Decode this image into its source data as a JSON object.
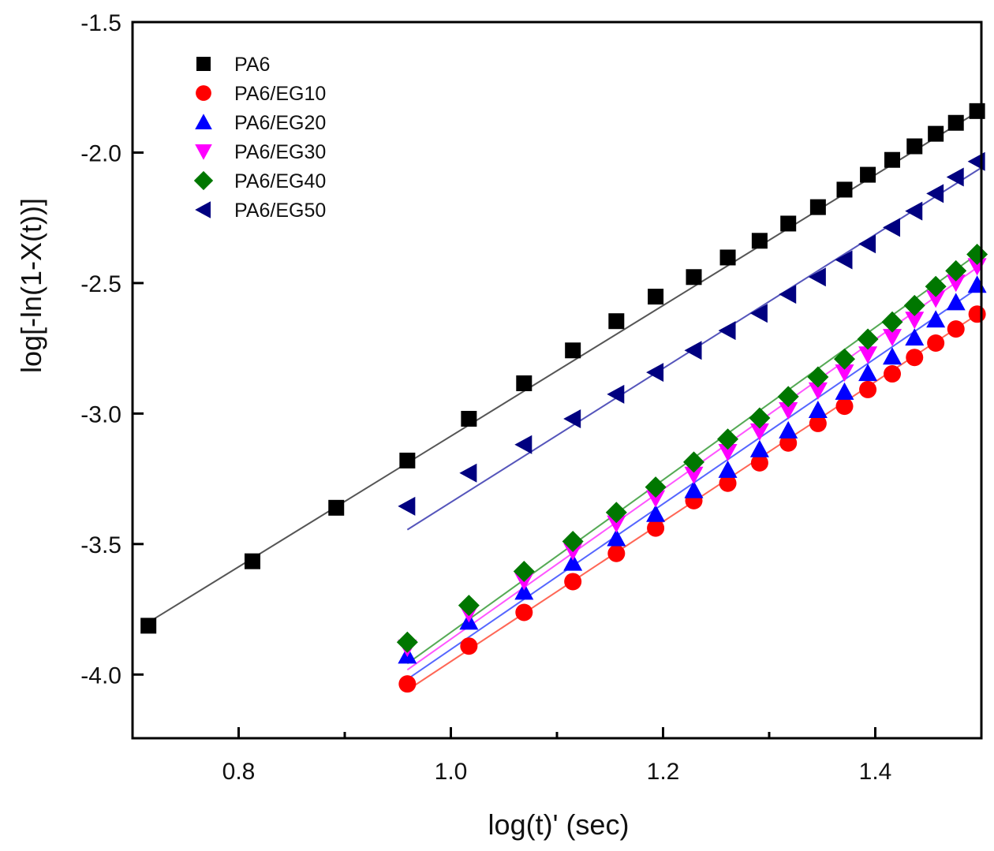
{
  "chart_data": {
    "type": "scatter",
    "title": "",
    "xlabel": "log(t)' (sec)",
    "ylabel": "log[-ln(1-X(t))]",
    "xlim": [
      0.7,
      1.5
    ],
    "ylim": [
      -4.244,
      -1.5
    ],
    "grid": false,
    "legend_position": "top-left",
    "xticks": [
      {
        "value": 0.8,
        "label": "0.8"
      },
      {
        "value": 1.0,
        "label": "1.0"
      },
      {
        "value": 1.2,
        "label": "1.2"
      },
      {
        "value": 1.4,
        "label": "1.4"
      }
    ],
    "xminor": [
      0.9,
      1.1,
      1.3
    ],
    "yticks": [
      {
        "value": -1.5,
        "label": "-1.5"
      },
      {
        "value": -2.0,
        "label": "-2.0"
      },
      {
        "value": -2.5,
        "label": "-2.5"
      },
      {
        "value": -3.0,
        "label": "-3.0"
      },
      {
        "value": -3.5,
        "label": "-3.5"
      },
      {
        "value": -4.0,
        "label": "-4.0"
      }
    ],
    "series": [
      {
        "name": "PA6",
        "marker": "square",
        "color": "#000000",
        "line_color": "#555555",
        "x": [
          0.715,
          0.813,
          0.892,
          0.959,
          1.017,
          1.069,
          1.115,
          1.156,
          1.193,
          1.229,
          1.261,
          1.291,
          1.318,
          1.346,
          1.371,
          1.393,
          1.416,
          1.437,
          1.457,
          1.476,
          1.496
        ],
        "y": [
          -3.813,
          -3.566,
          -3.361,
          -3.18,
          -3.02,
          -2.884,
          -2.758,
          -2.646,
          -2.552,
          -2.477,
          -2.402,
          -2.338,
          -2.272,
          -2.209,
          -2.142,
          -2.085,
          -2.028,
          -1.976,
          -1.928,
          -1.886,
          -1.841
        ],
        "fit": {
          "x": [
            0.715,
            1.5
          ],
          "y": [
            -3.8,
            -1.835
          ]
        }
      },
      {
        "name": "PA6/EG10",
        "marker": "circle",
        "color": "#ff0000",
        "line_color": "#ff6655",
        "x": [
          0.959,
          1.017,
          1.069,
          1.115,
          1.156,
          1.193,
          1.229,
          1.261,
          1.291,
          1.318,
          1.346,
          1.371,
          1.393,
          1.416,
          1.437,
          1.457,
          1.476,
          1.496
        ],
        "y": [
          -4.036,
          -3.891,
          -3.762,
          -3.644,
          -3.536,
          -3.439,
          -3.334,
          -3.267,
          -3.189,
          -3.113,
          -3.038,
          -2.972,
          -2.908,
          -2.848,
          -2.785,
          -2.73,
          -2.676,
          -2.619
        ],
        "fit": {
          "x": [
            0.959,
            1.5
          ],
          "y": [
            -4.06,
            -2.61
          ]
        }
      },
      {
        "name": "PA6/EG20",
        "marker": "triangle-up",
        "color": "#0000ff",
        "line_color": "#5566ff",
        "x": [
          0.959,
          1.017,
          1.069,
          1.115,
          1.156,
          1.193,
          1.229,
          1.261,
          1.291,
          1.318,
          1.346,
          1.371,
          1.393,
          1.416,
          1.437,
          1.457,
          1.476,
          1.496
        ],
        "y": [
          -3.928,
          -3.798,
          -3.683,
          -3.572,
          -3.478,
          -3.385,
          -3.294,
          -3.216,
          -3.137,
          -3.065,
          -2.987,
          -2.917,
          -2.845,
          -2.782,
          -2.709,
          -2.64,
          -2.574,
          -2.507
        ],
        "fit": {
          "x": [
            0.959,
            1.5
          ],
          "y": [
            -4.018,
            -2.51
          ]
        }
      },
      {
        "name": "PA6/EG30",
        "marker": "triangle-down",
        "color": "#ff00ff",
        "line_color": "#ff55ff",
        "x": [
          0.959,
          1.017,
          1.069,
          1.115,
          1.156,
          1.193,
          1.229,
          1.261,
          1.291,
          1.318,
          1.346,
          1.371,
          1.393,
          1.416,
          1.437,
          1.457,
          1.476,
          1.496
        ],
        "y": [
          -3.897,
          -3.765,
          -3.641,
          -3.527,
          -3.421,
          -3.324,
          -3.234,
          -3.147,
          -3.068,
          -2.987,
          -2.911,
          -2.842,
          -2.773,
          -2.706,
          -2.64,
          -2.559,
          -2.498,
          -2.435
        ],
        "fit": {
          "x": [
            0.959,
            1.5
          ],
          "y": [
            -3.982,
            -2.429
          ]
        }
      },
      {
        "name": "PA6/EG40",
        "marker": "diamond",
        "color": "#007700",
        "line_color": "#55aa55",
        "x": [
          0.959,
          1.017,
          1.069,
          1.115,
          1.156,
          1.193,
          1.229,
          1.261,
          1.291,
          1.318,
          1.346,
          1.371,
          1.393,
          1.416,
          1.437,
          1.457,
          1.476,
          1.496
        ],
        "y": [
          -3.876,
          -3.735,
          -3.605,
          -3.49,
          -3.379,
          -3.282,
          -3.186,
          -3.098,
          -3.017,
          -2.935,
          -2.86,
          -2.791,
          -2.715,
          -2.649,
          -2.586,
          -2.513,
          -2.453,
          -2.39
        ],
        "fit": {
          "x": [
            0.959,
            1.5
          ],
          "y": [
            -3.958,
            -2.378
          ]
        }
      },
      {
        "name": "PA6/EG50",
        "marker": "triangle-left",
        "color": "#000080",
        "line_color": "#5555bb",
        "x": [
          0.959,
          1.017,
          1.069,
          1.115,
          1.156,
          1.193,
          1.229,
          1.261,
          1.291,
          1.318,
          1.346,
          1.371,
          1.393,
          1.416,
          1.437,
          1.457,
          1.476,
          1.496
        ],
        "y": [
          -3.355,
          -3.228,
          -3.119,
          -3.02,
          -2.926,
          -2.842,
          -2.758,
          -2.682,
          -2.616,
          -2.543,
          -2.477,
          -2.411,
          -2.35,
          -2.287,
          -2.224,
          -2.157,
          -2.094,
          -2.034
        ],
        "fit": {
          "x": [
            0.959,
            1.5
          ],
          "y": [
            -3.445,
            -2.058
          ]
        }
      }
    ]
  }
}
